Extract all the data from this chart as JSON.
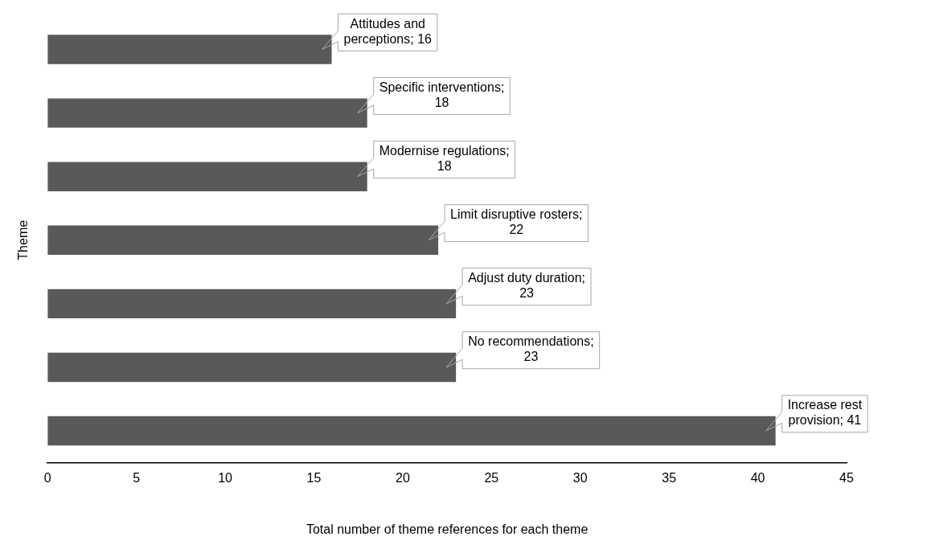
{
  "chart_data": {
    "type": "bar",
    "orientation": "horizontal",
    "ylabel": "Theme",
    "xlabel": "Total number of theme references for each theme",
    "categories": [
      null,
      null,
      null,
      null,
      null,
      null,
      null
    ],
    "values": [
      16,
      18,
      18,
      22,
      23,
      23,
      41
    ],
    "color": "#595959",
    "value_labels": [
      "Attitudes and perceptions; 16",
      "Specific interventions; 18",
      "Modernise regulations; 18",
      "Limit disruptive rosters; 22",
      "Adjust duty duration; 23",
      "No recommendations; 23",
      "Increase rest provision; 41"
    ],
    "xlim": [
      0,
      45
    ],
    "xticks": [
      0,
      5,
      10,
      15,
      20,
      25,
      30,
      35,
      40,
      45
    ],
    "grid": false,
    "legend": false,
    "tick_labels": "x"
  }
}
